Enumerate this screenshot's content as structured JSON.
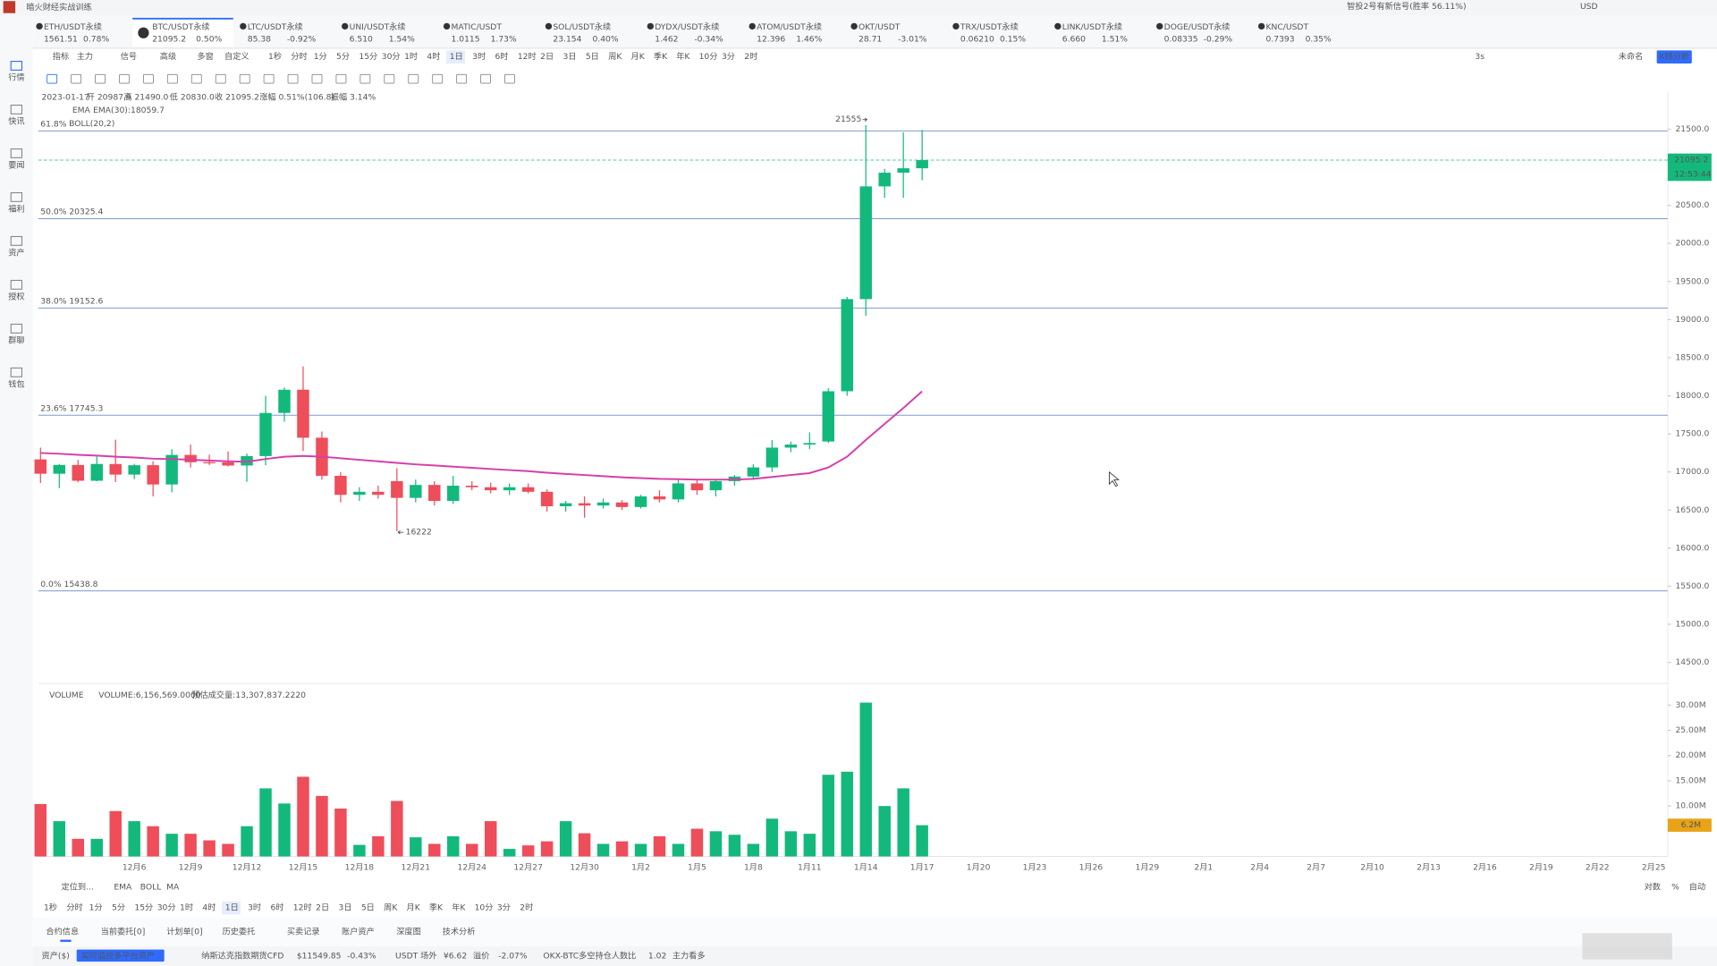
{
  "app": {
    "title": "暗火财经实战训练",
    "signal": "智投2号有新信号(胜率 56.11%)",
    "currency": "USD"
  },
  "tickers": [
    {
      "name": "ETH/USDT永续",
      "price": "1561.51",
      "change": "0.78%"
    },
    {
      "name": "BTC/USDT永续",
      "price": "21095.2",
      "change": "0.50%"
    },
    {
      "name": "LTC/USDT永续",
      "price": "85.38",
      "change": "-0.92%"
    },
    {
      "name": "UNI/USDT永续",
      "price": "6.510",
      "change": "1.54%"
    },
    {
      "name": "MATIC/USDT",
      "price": "1.0115",
      "change": "1.73%"
    },
    {
      "name": "SOL/USDT永续",
      "price": "23.154",
      "change": "0.40%"
    },
    {
      "name": "DYDX/USDT永续",
      "price": "1.462",
      "change": "-0.34%"
    },
    {
      "name": "ATOM/USDT永续",
      "price": "12.396",
      "change": "1.46%"
    },
    {
      "name": "OKT/USDT",
      "price": "28.71",
      "change": "-3.01%"
    },
    {
      "name": "TRX/USDT永续",
      "price": "0.06210",
      "change": "0.15%"
    },
    {
      "name": "LINK/USDT永续",
      "price": "6.660",
      "change": "1.51%"
    },
    {
      "name": "DOGE/USDT永续",
      "price": "0.08335",
      "change": "-0.29%"
    },
    {
      "name": "KNC/USDT",
      "price": "0.7393",
      "change": "0.35%"
    }
  ],
  "sidebar": [
    "行情",
    "快讯",
    "要闻",
    "福利",
    "资产",
    "授权",
    "群聊",
    "钱包"
  ],
  "toolbar": {
    "items": [
      "指标",
      "主力",
      "信号",
      "高级",
      "多窗",
      "自定义"
    ],
    "timeframes": [
      "1秒",
      "分时",
      "1分",
      "5分",
      "15分",
      "30分",
      "1时",
      "4时",
      "1日",
      "3时",
      "6时",
      "12时",
      "2日",
      "3日",
      "5日",
      "周K",
      "月K",
      "季K",
      "年K",
      "10分",
      "3分",
      "2时"
    ],
    "interval": "3s",
    "layout": "未命名",
    "analysis": "K线分析"
  },
  "ohlc": {
    "date": "2023-01-17",
    "fields": [
      "开 20987.9",
      "高 21490.0",
      "低 20830.0",
      "收 21095.2",
      "涨幅 0.51%(106.8)",
      "振幅 3.14%"
    ]
  },
  "indicators": {
    "ema": "EMA",
    "ema_value": "EMA(30):18059.7",
    "boll": "BOLL(20,2)"
  },
  "chart_data": {
    "type": "candlestick",
    "categories": [
      null,
      null,
      null,
      null,
      null,
      "12月6",
      null,
      null,
      "12月9",
      null,
      null,
      "12月12",
      null,
      null,
      "12月15",
      null,
      null,
      "12月18",
      null,
      null,
      "12月21",
      null,
      null,
      "12月24",
      null,
      null,
      "12月27",
      null,
      null,
      "12月30",
      null,
      null,
      "1月2",
      null,
      null,
      "1月5",
      null,
      null,
      "1月8",
      null,
      null,
      "1月11",
      null,
      null,
      "1月14",
      null,
      null,
      "1月17"
    ],
    "future_categories": [
      "1月20",
      "1月23",
      "1月26",
      "1月29",
      "2月1",
      "2月4",
      "2月7",
      "2月10",
      "2月13",
      "2月16",
      "2月19",
      "2月22",
      "2月25"
    ],
    "open": [
      17165,
      16977,
      17092,
      16885,
      17105,
      16966,
      17089,
      16836,
      17224,
      17128,
      17127,
      17085,
      17209,
      17775,
      18080,
      17450,
      16950,
      16700,
      16740,
      16880,
      16660,
      16830,
      16620,
      16820,
      16800,
      16760,
      16800,
      16740,
      16550,
      16590,
      16560,
      16600,
      16540,
      16680,
      16640,
      16850,
      16760,
      16880,
      16940,
      17060,
      17320,
      17360,
      17400,
      18060,
      19270,
      20750,
      20930,
      20987.9
    ],
    "high": [
      17320,
      17105,
      17158,
      17202,
      17424,
      17107,
      17142,
      17299,
      17360,
      17227,
      17270,
      17241,
      18000,
      18110,
      18387,
      17531,
      17000,
      16800,
      16820,
      17050,
      16900,
      16880,
      16950,
      16880,
      16860,
      16850,
      16850,
      16770,
      16620,
      16680,
      16650,
      16630,
      16700,
      16760,
      16900,
      16900,
      16900,
      16960,
      17100,
      17420,
      17400,
      17520,
      18100,
      19300,
      21555,
      20980,
      21460,
      21490
    ],
    "low": [
      16855,
      16787,
      16865,
      16878,
      16867,
      16906,
      16679,
      16733,
      17058,
      17092,
      17071,
      16871,
      17088,
      17660,
      17275,
      16900,
      16600,
      16620,
      16650,
      16222,
      16600,
      16560,
      16580,
      16760,
      16720,
      16700,
      16720,
      16480,
      16480,
      16400,
      16520,
      16500,
      16520,
      16600,
      16600,
      16700,
      16680,
      16820,
      16900,
      17000,
      17260,
      17300,
      17380,
      18000,
      19050,
      20600,
      20600,
      20830
    ],
    "close": [
      16977,
      17092,
      16885,
      17105,
      16966,
      17089,
      16836,
      17224,
      17128,
      17127,
      17085,
      17209,
      17775,
      18080,
      17450,
      16950,
      16700,
      16740,
      16700,
      16660,
      16830,
      16620,
      16820,
      16800,
      16760,
      16800,
      16740,
      16550,
      16590,
      16560,
      16600,
      16540,
      16680,
      16640,
      16850,
      16760,
      16880,
      16940,
      17060,
      17320,
      17360,
      17380,
      18060,
      19270,
      20750,
      20930,
      20988,
      21095.2
    ],
    "up_color": "#13b97c",
    "down_color": "#ee4d5a",
    "ema": {
      "name": "EMA(30)",
      "color": "#d63fa8",
      "values": [
        17250,
        17240,
        17225,
        17215,
        17200,
        17190,
        17175,
        17170,
        17160,
        17150,
        17140,
        17135,
        17170,
        17200,
        17210,
        17200,
        17180,
        17160,
        17140,
        17120,
        17100,
        17085,
        17070,
        17055,
        17040,
        17025,
        17010,
        16990,
        16975,
        16960,
        16945,
        16930,
        16920,
        16910,
        16905,
        16900,
        16900,
        16900,
        16910,
        16935,
        16960,
        16985,
        17060,
        17200,
        17420,
        17630,
        17840,
        18059.7
      ]
    },
    "ylim": [
      14425,
      21975
    ],
    "yticks": [
      {
        "value": 14500,
        "label": "14500.0"
      },
      {
        "value": 15000,
        "label": "15000.0"
      },
      {
        "value": 15500,
        "label": "15500.0"
      },
      {
        "value": 16000,
        "label": "16000.0"
      },
      {
        "value": 16500,
        "label": "16500.0"
      },
      {
        "value": 17000,
        "label": "17000.0"
      },
      {
        "value": 17500,
        "label": "17500.0"
      },
      {
        "value": 18000,
        "label": "18000.0"
      },
      {
        "value": 18500,
        "label": "18500.0"
      },
      {
        "value": 19000,
        "label": "19000.0"
      },
      {
        "value": 19500,
        "label": "19500.0"
      },
      {
        "value": 20000,
        "label": "20000.0"
      },
      {
        "value": 20500,
        "label": "20500.0"
      },
      {
        "value": 21000,
        "label": "21000.0"
      },
      {
        "value": 21500,
        "label": "21500.0"
      }
    ],
    "fib": [
      {
        "value": 21478,
        "label": "61.8%"
      },
      {
        "value": 20325.4,
        "label": "50.0% 20325.4"
      },
      {
        "value": 19152.6,
        "label": "38.0% 19152.6"
      },
      {
        "value": 17745.3,
        "label": "23.6% 17745.3"
      },
      {
        "value": 15438.8,
        "label": "0.0% 15438.8"
      }
    ],
    "high_mark": {
      "value": 21555,
      "label": "21555"
    },
    "low_mark": {
      "value": 16222,
      "label": "16222"
    },
    "last_price": {
      "value": 21095.2,
      "label": "21095.2",
      "countdown": "12:53:44"
    },
    "volume": {
      "name": "VOLUME",
      "legend": [
        "VOLUME:6,156,569.0000",
        "预估成交量:13,307,837.2220"
      ],
      "last_label": "6.2M",
      "values": [
        10.4,
        7.0,
        3.5,
        3.5,
        9.0,
        7.0,
        6.0,
        4.5,
        4.5,
        3.2,
        2.5,
        6.0,
        13.5,
        10.5,
        15.8,
        12.0,
        9.5,
        2.3,
        4.0,
        11.0,
        3.8,
        2.5,
        4.0,
        2.5,
        7.0,
        1.5,
        2.2,
        3.0,
        7.0,
        4.6,
        2.5,
        3.0,
        2.5,
        4.0,
        2.5,
        5.5,
        5.0,
        4.3,
        2.5,
        7.5,
        5.0,
        4.5,
        16.2,
        16.8,
        30.5,
        10.0,
        13.5,
        6.2
      ],
      "ylim": [
        0,
        33
      ],
      "yticks": [
        {
          "value": 10,
          "label": "10.00M"
        },
        {
          "value": 15,
          "label": "15.00M"
        },
        {
          "value": 20,
          "label": "20.00M"
        },
        {
          "value": 25,
          "label": "25.00M"
        },
        {
          "value": 30,
          "label": "30.00M"
        }
      ]
    },
    "scale_options": [
      "对数",
      "%",
      "自动"
    ]
  },
  "bottom": {
    "locate": "定位到...",
    "indicators": [
      "EMA",
      "BOLL",
      "MA"
    ],
    "tabs": [
      "合约信息",
      "当前委托[0]",
      "计划单[0]",
      "历史委托",
      "买卖记录",
      "账户资产",
      "深度图",
      "技术分析"
    ]
  },
  "status": [
    "资产($)",
    "实时监控多平台资产",
    "纳斯达克指数期货CFD",
    "$11549.85",
    "-0.43%",
    "USDT 场外",
    "¥6.62",
    "溢价",
    "-2.07%",
    "OKX-BTC多空持仓人数比",
    "1.02",
    "主力看多"
  ]
}
